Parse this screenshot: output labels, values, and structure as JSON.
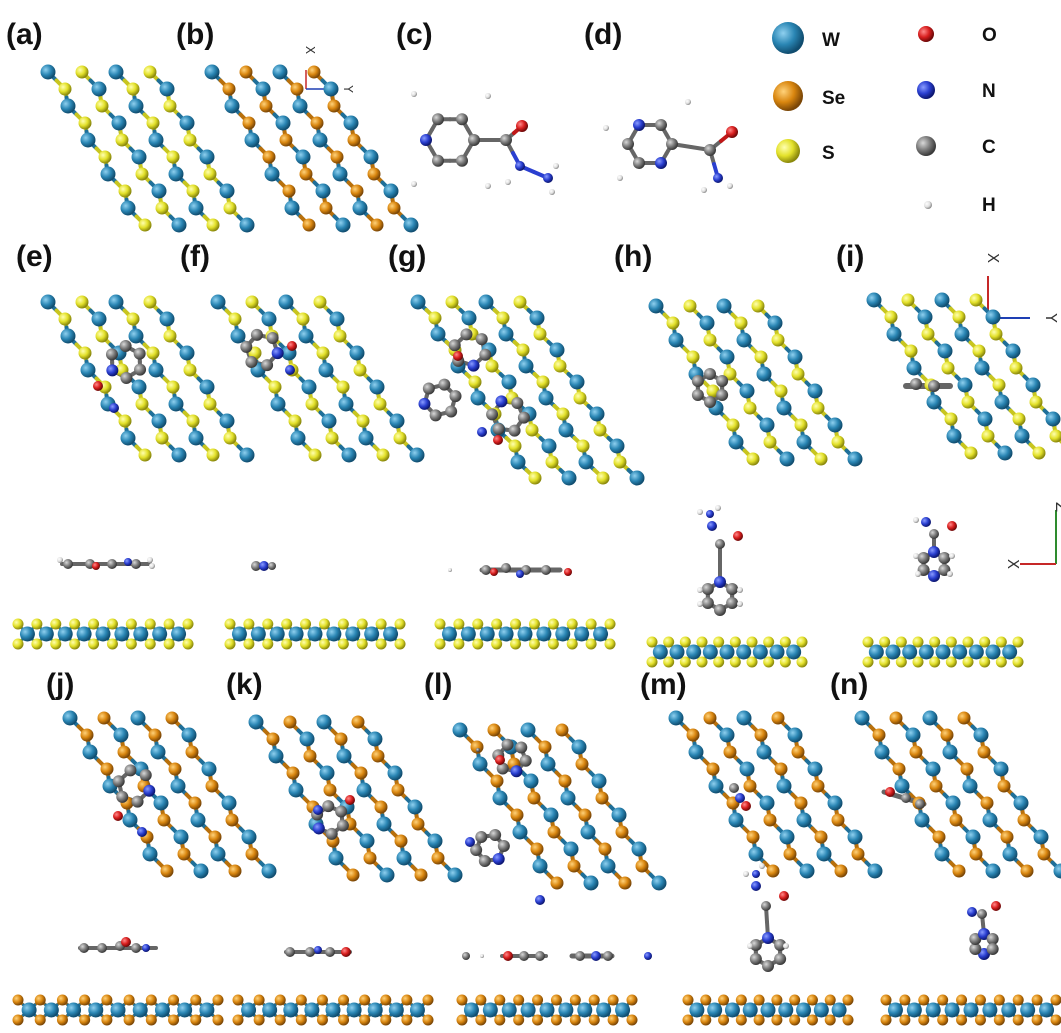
{
  "panel_labels": {
    "a": "(a)",
    "b": "(b)",
    "c": "(c)",
    "d": "(d)",
    "e": "(e)",
    "f": "(f)",
    "g": "(g)",
    "h": "(h)",
    "i": "(i)",
    "j": "(j)",
    "k": "(k)",
    "l": "(l)",
    "m": "(m)",
    "n": "(n)"
  },
  "legend": {
    "items": [
      {
        "symbol": "W",
        "color": "#2a86b4"
      },
      {
        "symbol": "Se",
        "color": "#d9860f"
      },
      {
        "symbol": "S",
        "color": "#e3e12a"
      },
      {
        "symbol": "O",
        "color": "#d81e1e"
      },
      {
        "symbol": "N",
        "color": "#2a3fd0"
      },
      {
        "symbol": "C",
        "color": "#7c7c7c"
      },
      {
        "symbol": "H",
        "color": "#e0e0e0"
      }
    ]
  },
  "axes": {
    "top_small": {
      "x": "X",
      "y": "Y"
    },
    "top_right": {
      "x": "X",
      "y": "Y"
    },
    "side_view": {
      "z": "Z",
      "x": "X"
    }
  },
  "colors": {
    "W": "#2a86b4",
    "Se": "#d9860f",
    "S": "#e3e12a",
    "O": "#d81e1e",
    "N": "#2a3fd0",
    "C": "#7c7c7c",
    "H": "#e0e0e0",
    "axis_x": "#c62828",
    "axis_y": "#1e3fb4",
    "axis_z": "#2e8b2e"
  }
}
